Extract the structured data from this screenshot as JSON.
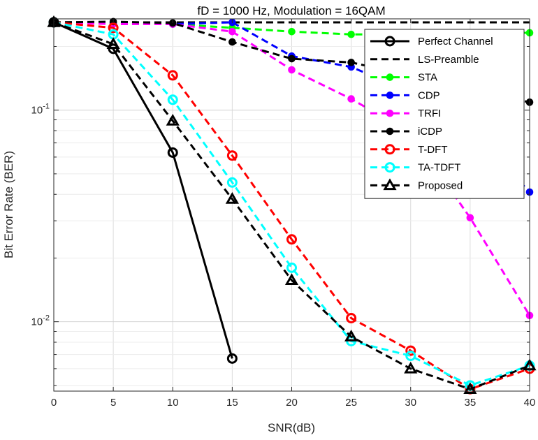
{
  "chart_data": {
    "type": "line",
    "title": "fD = 1000 Hz, Modulation = 16QAM",
    "xlabel": "SNR(dB)",
    "ylabel": "Bit Error Rate (BER)",
    "x_ticks": [
      "0",
      "5",
      "10",
      "15",
      "20",
      "25",
      "30",
      "35",
      "40"
    ],
    "y_scale": "log",
    "xlim": [
      0,
      40
    ],
    "ylim": [
      0.0047,
      0.27
    ],
    "grid": true,
    "legend_position": "top-right",
    "x": [
      0,
      5,
      10,
      15,
      20,
      25,
      30,
      35,
      40
    ],
    "series": [
      {
        "name": "Perfect Channel",
        "color": "#000000",
        "dash": "solid",
        "marker": "circle-open",
        "values": [
          0.26,
          0.195,
          0.063,
          0.0067,
          null,
          null,
          null,
          null,
          null
        ]
      },
      {
        "name": "LS-Preamble",
        "color": "#000000",
        "dash": "dashed",
        "marker": "none",
        "values": [
          0.26,
          0.26,
          0.26,
          0.26,
          0.26,
          0.26,
          0.26,
          0.26,
          0.26
        ]
      },
      {
        "name": "STA",
        "color": "#00ff00",
        "dash": "dashed",
        "marker": "dot",
        "values": [
          0.26,
          0.258,
          0.255,
          0.245,
          0.235,
          0.228,
          0.228,
          0.232,
          0.232
        ]
      },
      {
        "name": "CDP",
        "color": "#0000ff",
        "dash": "dashed",
        "marker": "dot",
        "values": [
          0.26,
          0.258,
          0.255,
          0.26,
          0.18,
          0.16,
          0.122,
          0.082,
          0.041
        ]
      },
      {
        "name": "TRFI",
        "color": "#ff00ff",
        "dash": "dashed",
        "marker": "dot",
        "values": [
          0.26,
          0.255,
          0.255,
          0.235,
          0.155,
          0.113,
          0.078,
          0.031,
          0.0107
        ]
      },
      {
        "name": "iCDP",
        "color": "#000000",
        "dash": "dashed",
        "marker": "dot",
        "values": [
          0.26,
          0.262,
          0.258,
          0.21,
          0.175,
          0.168,
          0.146,
          0.124,
          0.109
        ]
      },
      {
        "name": "T-DFT",
        "color": "#ff0000",
        "dash": "dashed",
        "marker": "circle-open",
        "values": [
          0.26,
          0.245,
          0.146,
          0.061,
          0.0245,
          0.0104,
          0.0073,
          0.0048,
          0.006
        ]
      },
      {
        "name": "TA-TDFT",
        "color": "#00ffff",
        "dash": "dashed",
        "marker": "circle-open",
        "values": [
          0.26,
          0.228,
          0.112,
          0.0455,
          0.018,
          0.0081,
          0.0069,
          0.005,
          0.0062
        ]
      },
      {
        "name": "Proposed",
        "color": "#000000",
        "dash": "dashed",
        "marker": "triangle-open",
        "values": [
          0.26,
          0.205,
          0.089,
          0.038,
          0.0157,
          0.0085,
          0.006,
          0.0048,
          0.0062
        ]
      }
    ]
  }
}
